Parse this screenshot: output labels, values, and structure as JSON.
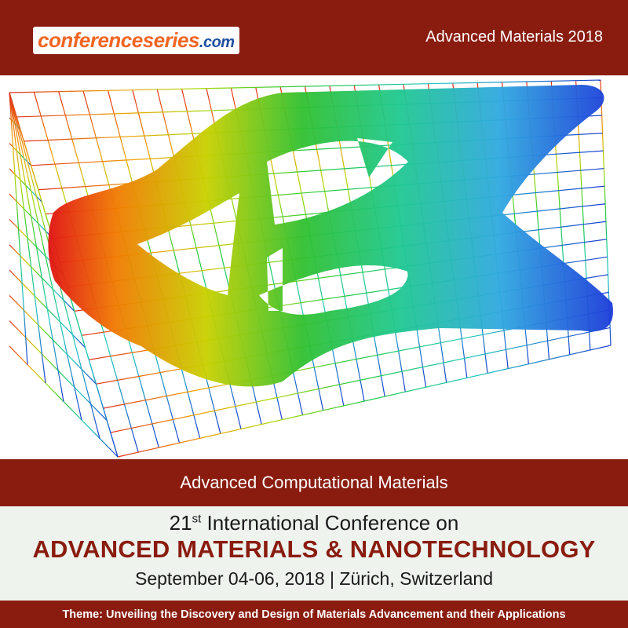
{
  "header": {
    "logo": {
      "brand": "conferenceseries",
      "domain": ".com"
    },
    "event": "Advanced Materials 2018"
  },
  "banner": {
    "caption": "Advanced Computational Materials"
  },
  "conference": {
    "number": "21",
    "ordinal_suffix": "st",
    "line1": "International Conference on",
    "title": "ADVANCED MATERIALS & NANOTECHNOLOGY",
    "date_location": "September 04-06, 2018 | Zürich, Switzerland"
  },
  "footer": {
    "theme": "Theme: Unveiling the Discovery and Design of Materials Advancement and their Applications"
  }
}
